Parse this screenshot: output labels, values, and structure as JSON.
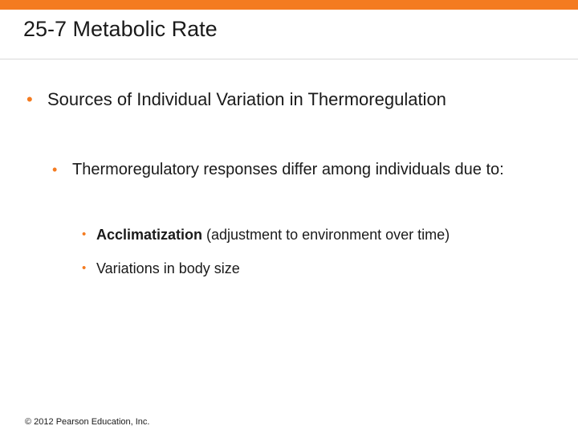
{
  "colors": {
    "accent": "#f47b20",
    "bullet": "#f47b20",
    "text": "#1a1a1a",
    "rule": "#d9d9d9"
  },
  "slide": {
    "title": "25-7 Metabolic Rate",
    "level1": {
      "bullet": "•",
      "text": "Sources of Individual Variation in Thermoregulation"
    },
    "level2": {
      "bullet": "•",
      "text": "Thermoregulatory responses differ among individuals due to:"
    },
    "level3": [
      {
        "bullet": "•",
        "term": "Acclimatization",
        "text": " (adjustment to environment over time)"
      },
      {
        "bullet": "•",
        "text": "Variations in body size"
      }
    ]
  },
  "footer": {
    "copyright": "© 2012 Pearson Education, Inc."
  }
}
